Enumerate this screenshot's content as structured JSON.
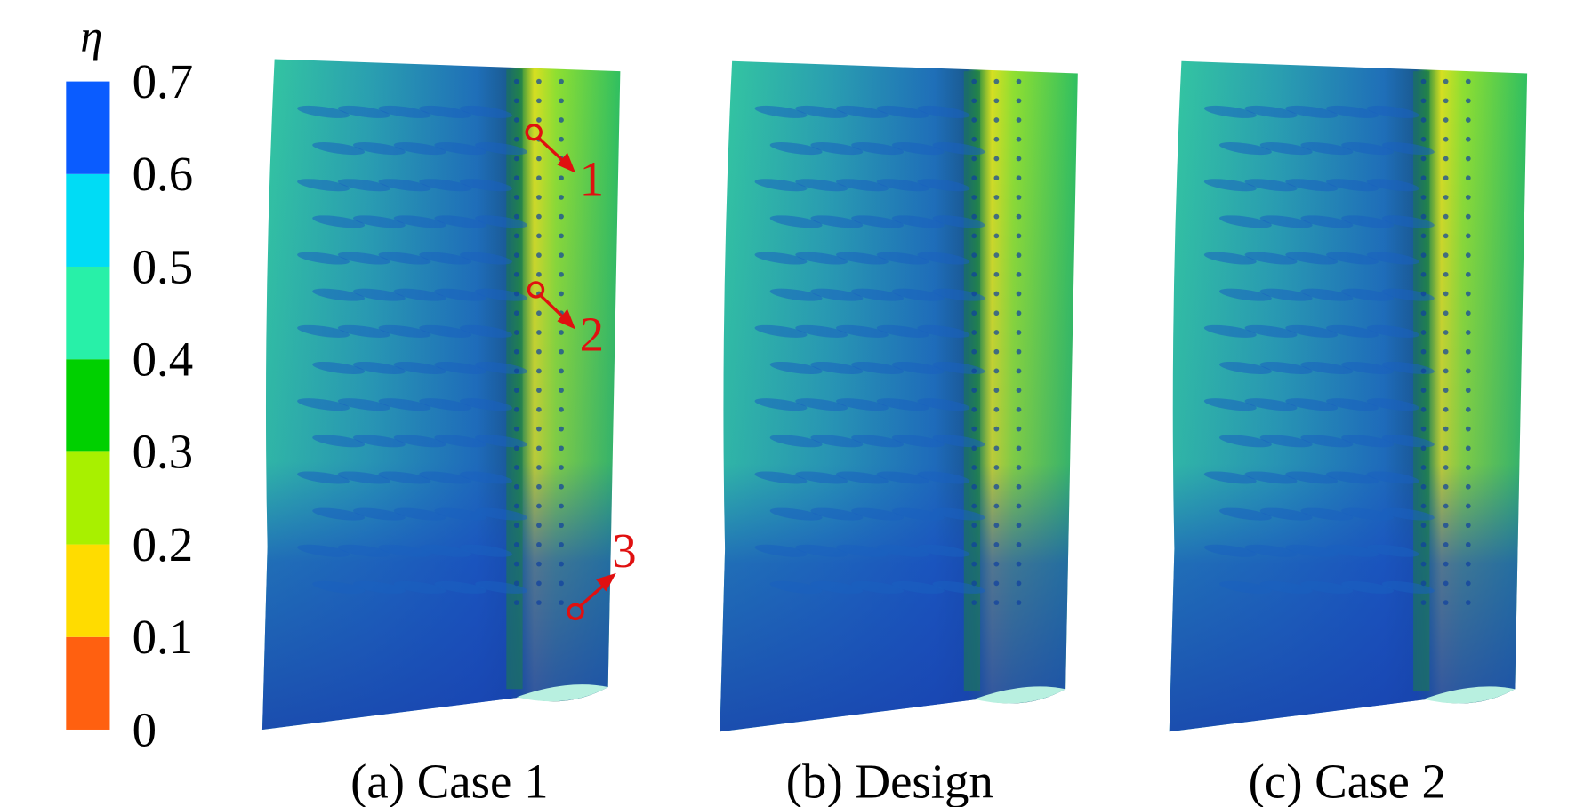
{
  "colorbar": {
    "symbol": "η",
    "ticks": [
      0,
      0.1,
      0.2,
      0.3,
      0.4,
      0.5,
      0.6,
      0.7
    ],
    "range": [
      0,
      0.7
    ],
    "colors": [
      "#ff6010",
      "#ffdc00",
      "#a8f000",
      "#00d000",
      "#28f0a8",
      "#00dcf5",
      "#0a5cff"
    ]
  },
  "panels": [
    {
      "caption": "(a) Case 1"
    },
    {
      "caption": "(b) Design"
    },
    {
      "caption": "(c) Case 2"
    }
  ],
  "annotations": [
    "1",
    "2",
    "3"
  ]
}
